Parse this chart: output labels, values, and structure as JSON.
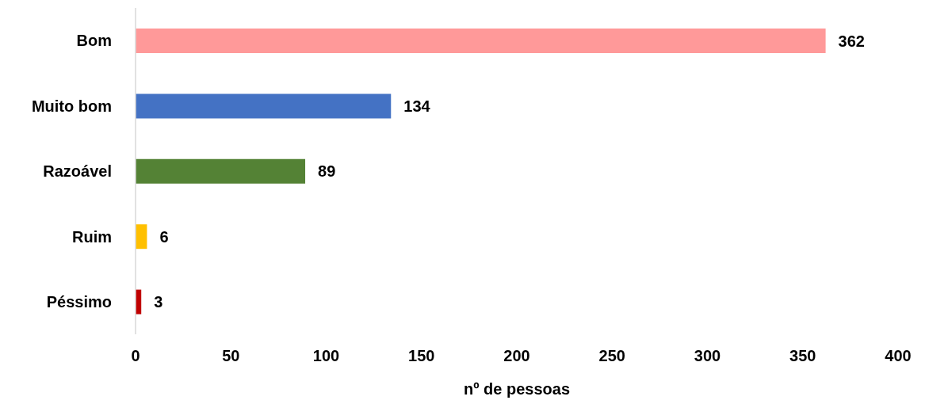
{
  "chart_data": {
    "type": "bar",
    "orientation": "horizontal",
    "xlabel": "nº de pessoas",
    "categories": [
      "Bom",
      "Muito bom",
      "Razoável",
      "Ruim",
      "Péssimo"
    ],
    "values": [
      362,
      134,
      89,
      6,
      3
    ],
    "colors": [
      "#ff9999",
      "#4472c4",
      "#548235",
      "#ffc000",
      "#c00000"
    ],
    "xlim": [
      0,
      400
    ],
    "xticks": [
      0,
      50,
      100,
      150,
      200,
      250,
      300,
      350,
      400
    ],
    "data_labels": true
  }
}
